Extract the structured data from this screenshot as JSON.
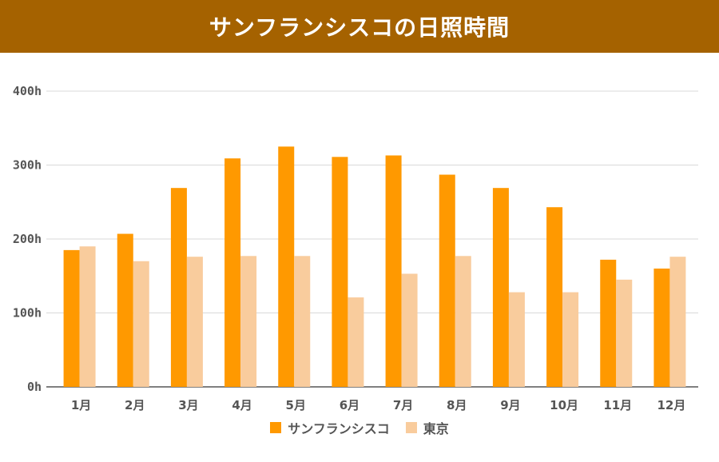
{
  "header": {
    "title": "サンフランシスコの日照時間"
  },
  "colors": {
    "banner": "#a56200",
    "series1": "#ff9900",
    "series2": "#f9cc9d",
    "grid": "#d9d9d9",
    "axis": "#555555"
  },
  "chart_data": {
    "type": "bar",
    "title": "サンフランシスコの日照時間",
    "xlabel": "",
    "ylabel": "",
    "categories": [
      "1月",
      "2月",
      "3月",
      "4月",
      "5月",
      "6月",
      "7月",
      "8月",
      "9月",
      "10月",
      "11月",
      "12月"
    ],
    "series": [
      {
        "name": "サンフランシスコ",
        "values": [
          185,
          207,
          269,
          309,
          325,
          311,
          313,
          287,
          269,
          243,
          172,
          160
        ]
      },
      {
        "name": "東京",
        "values": [
          190,
          170,
          176,
          177,
          177,
          121,
          153,
          177,
          128,
          128,
          145,
          176
        ]
      }
    ],
    "ylim": [
      0,
      400
    ],
    "yticks": [
      0,
      100,
      200,
      300,
      400
    ],
    "ytick_labels": [
      "0h",
      "100h",
      "200h",
      "300h",
      "400h"
    ],
    "grid": true,
    "legend": "bottom-center"
  }
}
